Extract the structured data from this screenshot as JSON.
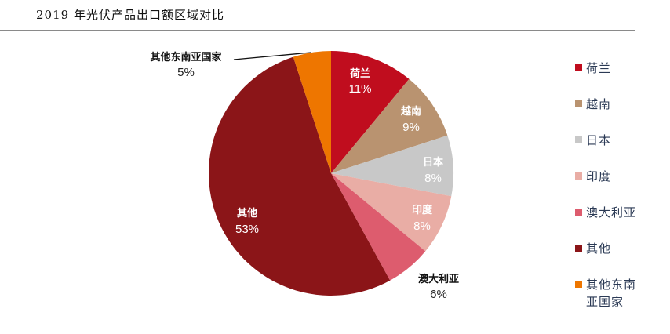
{
  "header": {
    "title": "2019 年光伏产品出口额区域对比"
  },
  "chart_data": {
    "type": "pie",
    "title": "2019 年光伏产品出口额区域对比",
    "start_angle": "12 o'clock, clockwise",
    "legend_position": "right",
    "slices": [
      {
        "label": "荷兰",
        "value": 11,
        "pct": "11%",
        "color": "#C00D1E"
      },
      {
        "label": "越南",
        "value": 9,
        "pct": "9%",
        "color": "#B99370"
      },
      {
        "label": "日本",
        "value": 8,
        "pct": "8%",
        "color": "#C8C8C8"
      },
      {
        "label": "印度",
        "value": 8,
        "pct": "8%",
        "color": "#E9ADA5"
      },
      {
        "label": "澳大利亚",
        "value": 6,
        "pct": "6%",
        "color": "#DD5C6E"
      },
      {
        "label": "其他",
        "value": 53,
        "pct": "53%",
        "color": "#8B1518"
      },
      {
        "label": "其他东南亚国家",
        "value": 5,
        "pct": "5%",
        "color": "#EE7600"
      }
    ]
  },
  "legend": {
    "items": [
      {
        "label": "荷兰",
        "color": "#C00D1E"
      },
      {
        "label": "越南",
        "color": "#B99370"
      },
      {
        "label": "日本",
        "color": "#C8C8C8"
      },
      {
        "label": "印度",
        "color": "#E9ADA5"
      },
      {
        "label": "澳大利亚",
        "color": "#DD5C6E"
      },
      {
        "label": "其他",
        "color": "#8B1518"
      },
      {
        "label": "其他东南亚国家",
        "color": "#EE7600"
      }
    ]
  }
}
